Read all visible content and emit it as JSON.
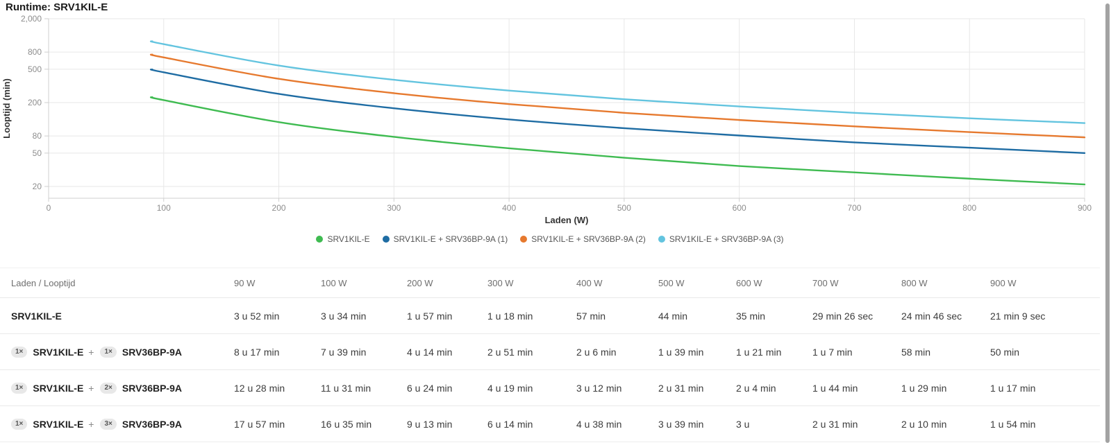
{
  "page": {
    "title": "Runtime: SRV1KIL-E"
  },
  "chart_data": {
    "type": "line",
    "title": "Runtime: SRV1KIL-E",
    "xlabel": "Laden (W)",
    "ylabel": "Looptijd (min)",
    "x": [
      90,
      100,
      200,
      300,
      400,
      500,
      600,
      700,
      800,
      900
    ],
    "xlim": [
      0,
      900
    ],
    "x_ticks": [
      0,
      100,
      200,
      300,
      400,
      500,
      600,
      700,
      800,
      900
    ],
    "y_scale": "log",
    "ylim": [
      14.5,
      2000
    ],
    "y_ticks": [
      {
        "value": 2000,
        "label": "2,000"
      },
      {
        "value": 800,
        "label": "800"
      },
      {
        "value": 500,
        "label": "500"
      },
      {
        "value": 200,
        "label": "200"
      },
      {
        "value": 80,
        "label": "80"
      },
      {
        "value": 50,
        "label": "50"
      },
      {
        "value": 20,
        "label": "20"
      }
    ],
    "grid": true,
    "legend_position": "bottom",
    "values_unit": "min",
    "series": [
      {
        "name": "SRV1KIL-E",
        "color": "#3fbb51",
        "values": [
          232,
          214,
          117,
          78,
          57,
          44,
          35,
          29.43,
          24.77,
          21.15
        ]
      },
      {
        "name": "SRV1KIL-E + SRV36BP-9A (1)",
        "color": "#1e6ca3",
        "values": [
          497,
          459,
          254,
          171,
          126,
          99,
          81,
          67,
          58,
          50
        ]
      },
      {
        "name": "SRV1KIL-E + SRV36BP-9A (2)",
        "color": "#e6792e",
        "values": [
          748,
          691,
          384,
          259,
          192,
          151,
          124,
          104,
          89,
          77
        ]
      },
      {
        "name": "SRV1KIL-E + SRV36BP-9A (3)",
        "color": "#63c4df",
        "values": [
          1077,
          995,
          553,
          374,
          278,
          219,
          180,
          151,
          130,
          114
        ]
      }
    ]
  },
  "table": {
    "header": [
      "Laden / Looptijd",
      "90 W",
      "100 W",
      "200 W",
      "300 W",
      "400 W",
      "500 W",
      "600 W",
      "700 W",
      "800 W",
      "900 W"
    ],
    "rows": [
      {
        "label": [
          {
            "qty": "",
            "name": "SRV1KIL-E"
          }
        ],
        "values": [
          "3 u 52 min",
          "3 u 34 min",
          "1 u 57 min",
          "1 u 18 min",
          "57 min",
          "44 min",
          "35 min",
          "29 min 26 sec",
          "24 min 46 sec",
          "21 min 9 sec"
        ]
      },
      {
        "label": [
          {
            "qty": "1×",
            "name": "SRV1KIL-E"
          },
          {
            "qty": "1×",
            "name": "SRV36BP-9A"
          }
        ],
        "values": [
          "8 u 17 min",
          "7 u 39 min",
          "4 u 14 min",
          "2 u 51 min",
          "2 u 6 min",
          "1 u 39 min",
          "1 u 21 min",
          "1 u 7 min",
          "58 min",
          "50 min"
        ]
      },
      {
        "label": [
          {
            "qty": "1×",
            "name": "SRV1KIL-E"
          },
          {
            "qty": "2×",
            "name": "SRV36BP-9A"
          }
        ],
        "values": [
          "12 u 28 min",
          "11 u 31 min",
          "6 u 24 min",
          "4 u 19 min",
          "3 u 12 min",
          "2 u 31 min",
          "2 u 4 min",
          "1 u 44 min",
          "1 u 29 min",
          "1 u 17 min"
        ]
      },
      {
        "label": [
          {
            "qty": "1×",
            "name": "SRV1KIL-E"
          },
          {
            "qty": "3×",
            "name": "SRV36BP-9A"
          }
        ],
        "values": [
          "17 u 57 min",
          "16 u 35 min",
          "9 u 13 min",
          "6 u 14 min",
          "4 u 38 min",
          "3 u 39 min",
          "3 u",
          "2 u 31 min",
          "2 u 10 min",
          "1 u 54 min"
        ]
      }
    ]
  }
}
